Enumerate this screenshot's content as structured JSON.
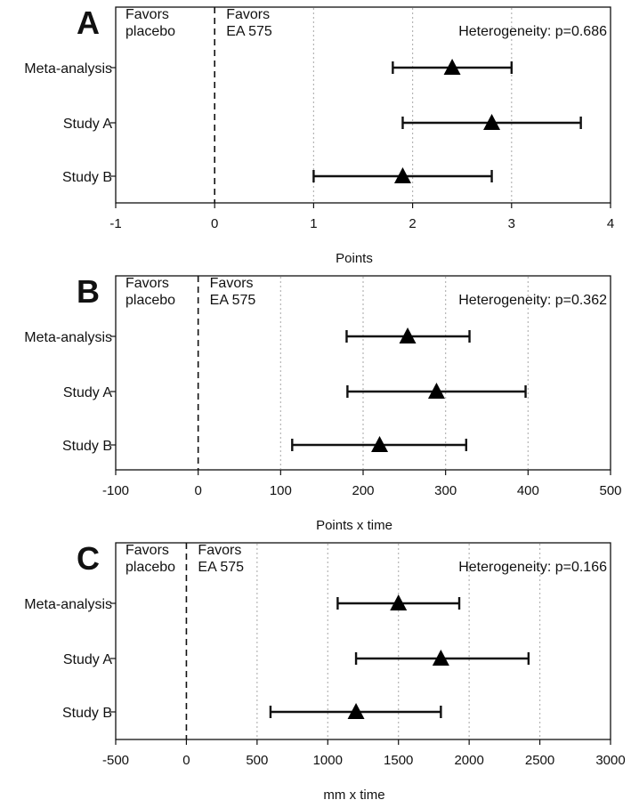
{
  "chart_data": [
    {
      "type": "forest",
      "panel_label": "A",
      "xlabel": "Points",
      "xlim": [
        -1,
        4
      ],
      "ticks": [
        -1,
        0,
        1,
        2,
        3,
        4
      ],
      "tick_labels": [
        "-1",
        "0",
        "1",
        "2",
        "3",
        "4"
      ],
      "dotted_gridlines": [
        1,
        2,
        3
      ],
      "reference_line": 0,
      "favors_left": [
        "Favors",
        "placebo"
      ],
      "favors_right": [
        "Favors",
        "EA 575"
      ],
      "heterogeneity": "Heterogeneity: p=0.686",
      "rows": [
        {
          "label": "Meta-analysis",
          "estimate": 2.4,
          "lower": 1.8,
          "upper": 3.0
        },
        {
          "label": "Study A",
          "estimate": 2.8,
          "lower": 1.9,
          "upper": 3.7
        },
        {
          "label": "Study B",
          "estimate": 1.9,
          "lower": 1.0,
          "upper": 2.8
        }
      ]
    },
    {
      "type": "forest",
      "panel_label": "B",
      "xlabel": "Points x time",
      "xlim": [
        -100,
        500
      ],
      "ticks": [
        -100,
        0,
        100,
        200,
        300,
        400,
        500
      ],
      "tick_labels": [
        "-100",
        "0",
        "100",
        "200",
        "300",
        "400",
        "500"
      ],
      "dotted_gridlines": [
        100,
        200,
        300,
        400
      ],
      "reference_line": 0,
      "favors_left": [
        "Favors",
        "placebo"
      ],
      "favors_right": [
        "Favors",
        "EA 575"
      ],
      "heterogeneity": "Heterogeneity: p=0.362",
      "rows": [
        {
          "label": "Meta-analysis",
          "estimate": 254,
          "lower": 180,
          "upper": 329
        },
        {
          "label": "Study A",
          "estimate": 289,
          "lower": 181,
          "upper": 397
        },
        {
          "label": "Study B",
          "estimate": 220,
          "lower": 114,
          "upper": 325
        }
      ]
    },
    {
      "type": "forest",
      "panel_label": "C",
      "xlabel": "mm x time",
      "xlim": [
        -500,
        3000
      ],
      "ticks": [
        -500,
        0,
        500,
        1000,
        1500,
        2000,
        2500,
        3000
      ],
      "tick_labels": [
        "-500",
        "0",
        "500",
        "1000",
        "1500",
        "2000",
        "2500",
        "3000"
      ],
      "dotted_gridlines": [
        500,
        1000,
        1500,
        2000,
        2500
      ],
      "reference_line": 0,
      "favors_left": [
        "Favors",
        "placebo"
      ],
      "favors_right": [
        "Favors",
        "EA 575"
      ],
      "heterogeneity": "Heterogeneity: p=0.166",
      "rows": [
        {
          "label": "Meta-analysis",
          "estimate": 1500,
          "lower": 1070,
          "upper": 1930
        },
        {
          "label": "Study A",
          "estimate": 1800,
          "lower": 1200,
          "upper": 2420
        },
        {
          "label": "Study B",
          "estimate": 1200,
          "lower": 595,
          "upper": 1800
        }
      ]
    }
  ]
}
